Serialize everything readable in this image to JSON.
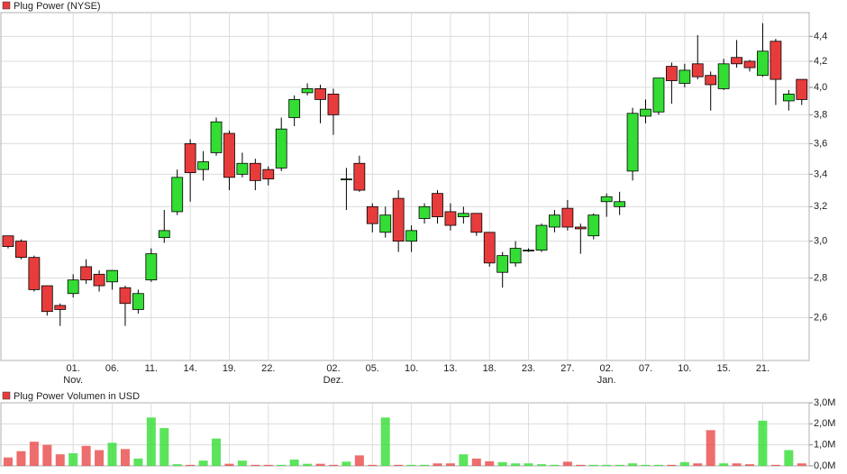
{
  "chart_data": [
    {
      "type": "candlestick",
      "title": "Plug Power (NYSE)",
      "log_scale": true,
      "grid": true,
      "up_color": "#33dd33",
      "down_color": "#e83c3c",
      "categories": [
        null,
        null,
        null,
        null,
        null,
        "01.",
        null,
        null,
        "06.",
        null,
        null,
        "11.",
        null,
        null,
        "14.",
        null,
        null,
        "19.",
        null,
        null,
        "22.",
        null,
        null,
        null,
        null,
        "02.",
        null,
        null,
        "05.",
        null,
        null,
        "10.",
        null,
        null,
        "13.",
        null,
        null,
        "18.",
        null,
        null,
        "23.",
        null,
        null,
        "27.",
        null,
        null,
        "02.",
        null,
        null,
        "07.",
        null,
        null,
        "10.",
        null,
        null,
        "15.",
        null,
        null,
        "21.",
        null,
        null,
        null
      ],
      "months": [
        null,
        null,
        null,
        null,
        null,
        "Nov.",
        null,
        null,
        null,
        null,
        null,
        null,
        null,
        null,
        null,
        null,
        null,
        null,
        null,
        null,
        null,
        null,
        null,
        null,
        null,
        "Dez.",
        null,
        null,
        null,
        null,
        null,
        null,
        null,
        null,
        null,
        null,
        null,
        null,
        null,
        null,
        null,
        null,
        null,
        null,
        null,
        null,
        "Jan.",
        null,
        null,
        null,
        null,
        null,
        null,
        null,
        null,
        null,
        null,
        null,
        null,
        null,
        null,
        null
      ],
      "open": [
        3.03,
        3.0,
        2.91,
        2.76,
        2.66,
        2.72,
        2.86,
        2.82,
        2.78,
        2.75,
        2.64,
        2.79,
        3.02,
        3.17,
        3.6,
        3.43,
        3.54,
        3.67,
        3.4,
        3.47,
        3.43,
        3.44,
        3.78,
        3.96,
        3.99,
        3.95,
        3.37,
        3.47,
        3.2,
        3.05,
        3.25,
        3.0,
        3.13,
        3.28,
        3.17,
        3.14,
        3.16,
        3.05,
        2.83,
        2.88,
        2.95,
        2.95,
        3.08,
        3.19,
        3.08,
        3.03,
        3.23,
        3.2,
        3.42,
        3.79,
        3.82,
        4.16,
        4.03,
        4.18,
        4.09,
        3.99,
        4.23,
        4.2,
        4.09,
        4.36,
        3.9,
        4.06
      ],
      "high": [
        3.03,
        3.01,
        2.92,
        2.76,
        2.67,
        2.82,
        2.9,
        2.84,
        2.84,
        2.76,
        2.74,
        2.96,
        3.18,
        3.43,
        3.63,
        3.55,
        3.78,
        3.69,
        3.54,
        3.5,
        3.45,
        3.78,
        3.94,
        4.03,
        4.02,
        3.99,
        3.44,
        3.52,
        3.22,
        3.2,
        3.3,
        3.09,
        3.22,
        3.3,
        3.22,
        3.2,
        3.16,
        3.05,
        2.94,
        3.0,
        2.96,
        3.1,
        3.18,
        3.24,
        3.1,
        3.16,
        3.28,
        3.29,
        3.85,
        3.91,
        4.07,
        4.19,
        4.18,
        4.41,
        4.12,
        4.22,
        4.37,
        4.21,
        4.51,
        4.38,
        3.98,
        4.06
      ],
      "low": [
        2.96,
        2.9,
        2.73,
        2.61,
        2.56,
        2.7,
        2.77,
        2.73,
        2.74,
        2.56,
        2.62,
        2.78,
        2.99,
        3.15,
        3.23,
        3.36,
        3.52,
        3.3,
        3.38,
        3.3,
        3.33,
        3.42,
        3.72,
        3.94,
        3.74,
        3.66,
        3.18,
        3.29,
        3.05,
        3.02,
        2.94,
        2.94,
        3.1,
        3.1,
        3.06,
        3.1,
        3.03,
        2.86,
        2.75,
        2.86,
        2.94,
        2.94,
        3.05,
        3.06,
        2.93,
        3.01,
        3.14,
        3.15,
        3.36,
        3.74,
        3.8,
        3.88,
        4.0,
        4.06,
        3.83,
        3.98,
        4.15,
        4.12,
        4.08,
        3.87,
        3.83,
        3.87
      ],
      "close": [
        2.97,
        2.91,
        2.74,
        2.63,
        2.64,
        2.79,
        2.79,
        2.76,
        2.84,
        2.67,
        2.72,
        2.93,
        3.06,
        3.38,
        3.41,
        3.48,
        3.75,
        3.38,
        3.47,
        3.36,
        3.37,
        3.7,
        3.91,
        3.99,
        3.91,
        3.8,
        3.37,
        3.3,
        3.1,
        3.15,
        3.0,
        3.06,
        3.2,
        3.14,
        3.09,
        3.16,
        3.05,
        2.88,
        2.92,
        2.96,
        2.95,
        3.09,
        3.15,
        3.08,
        3.07,
        3.15,
        3.26,
        3.23,
        3.81,
        3.84,
        4.07,
        4.05,
        4.13,
        4.08,
        4.02,
        4.18,
        4.18,
        4.15,
        4.28,
        4.06,
        3.95,
        3.91
      ],
      "ylim": [
        2.4,
        4.6
      ],
      "yticks": [
        {
          "value": 2.6,
          "label": "2,6"
        },
        {
          "value": 2.8,
          "label": "2,8"
        },
        {
          "value": 3.0,
          "label": "3,0"
        },
        {
          "value": 3.2,
          "label": "3,2"
        },
        {
          "value": 3.4,
          "label": "3,4"
        },
        {
          "value": 3.6,
          "label": "3,6"
        },
        {
          "value": 3.8,
          "label": "3,8"
        },
        {
          "value": 4.0,
          "label": "4,0"
        },
        {
          "value": 4.2,
          "label": "4,2"
        },
        {
          "value": 4.4,
          "label": "4,4"
        }
      ]
    },
    {
      "type": "bar",
      "title": "Plug Power Volumen in USD",
      "grid": true,
      "values": [
        0.4,
        0.7,
        1.15,
        1.0,
        0.55,
        0.6,
        0.95,
        0.75,
        1.1,
        0.8,
        0.35,
        2.3,
        1.8,
        0.08,
        0.05,
        0.25,
        1.3,
        0.1,
        0.25,
        0.05,
        0.05,
        0.05,
        0.3,
        0.1,
        0.1,
        0.05,
        0.2,
        0.5,
        0.05,
        2.3,
        0.05,
        0.05,
        0.05,
        0.12,
        0.12,
        0.55,
        0.35,
        0.22,
        0.18,
        0.12,
        0.12,
        0.08,
        0.05,
        0.2,
        0.05,
        0.05,
        0.05,
        0.05,
        0.12,
        0.05,
        0.05,
        0.05,
        0.18,
        0.12,
        1.7,
        0.12,
        0.12,
        0.08,
        2.15,
        0.05,
        0.75,
        0.12
      ],
      "ylim": [
        0,
        3
      ],
      "yticks": [
        {
          "value": 0,
          "label": "0,0M"
        },
        {
          "value": 1,
          "label": "1,0M"
        },
        {
          "value": 2,
          "label": "2,0M"
        },
        {
          "value": 3,
          "label": "3,0M"
        }
      ]
    }
  ]
}
